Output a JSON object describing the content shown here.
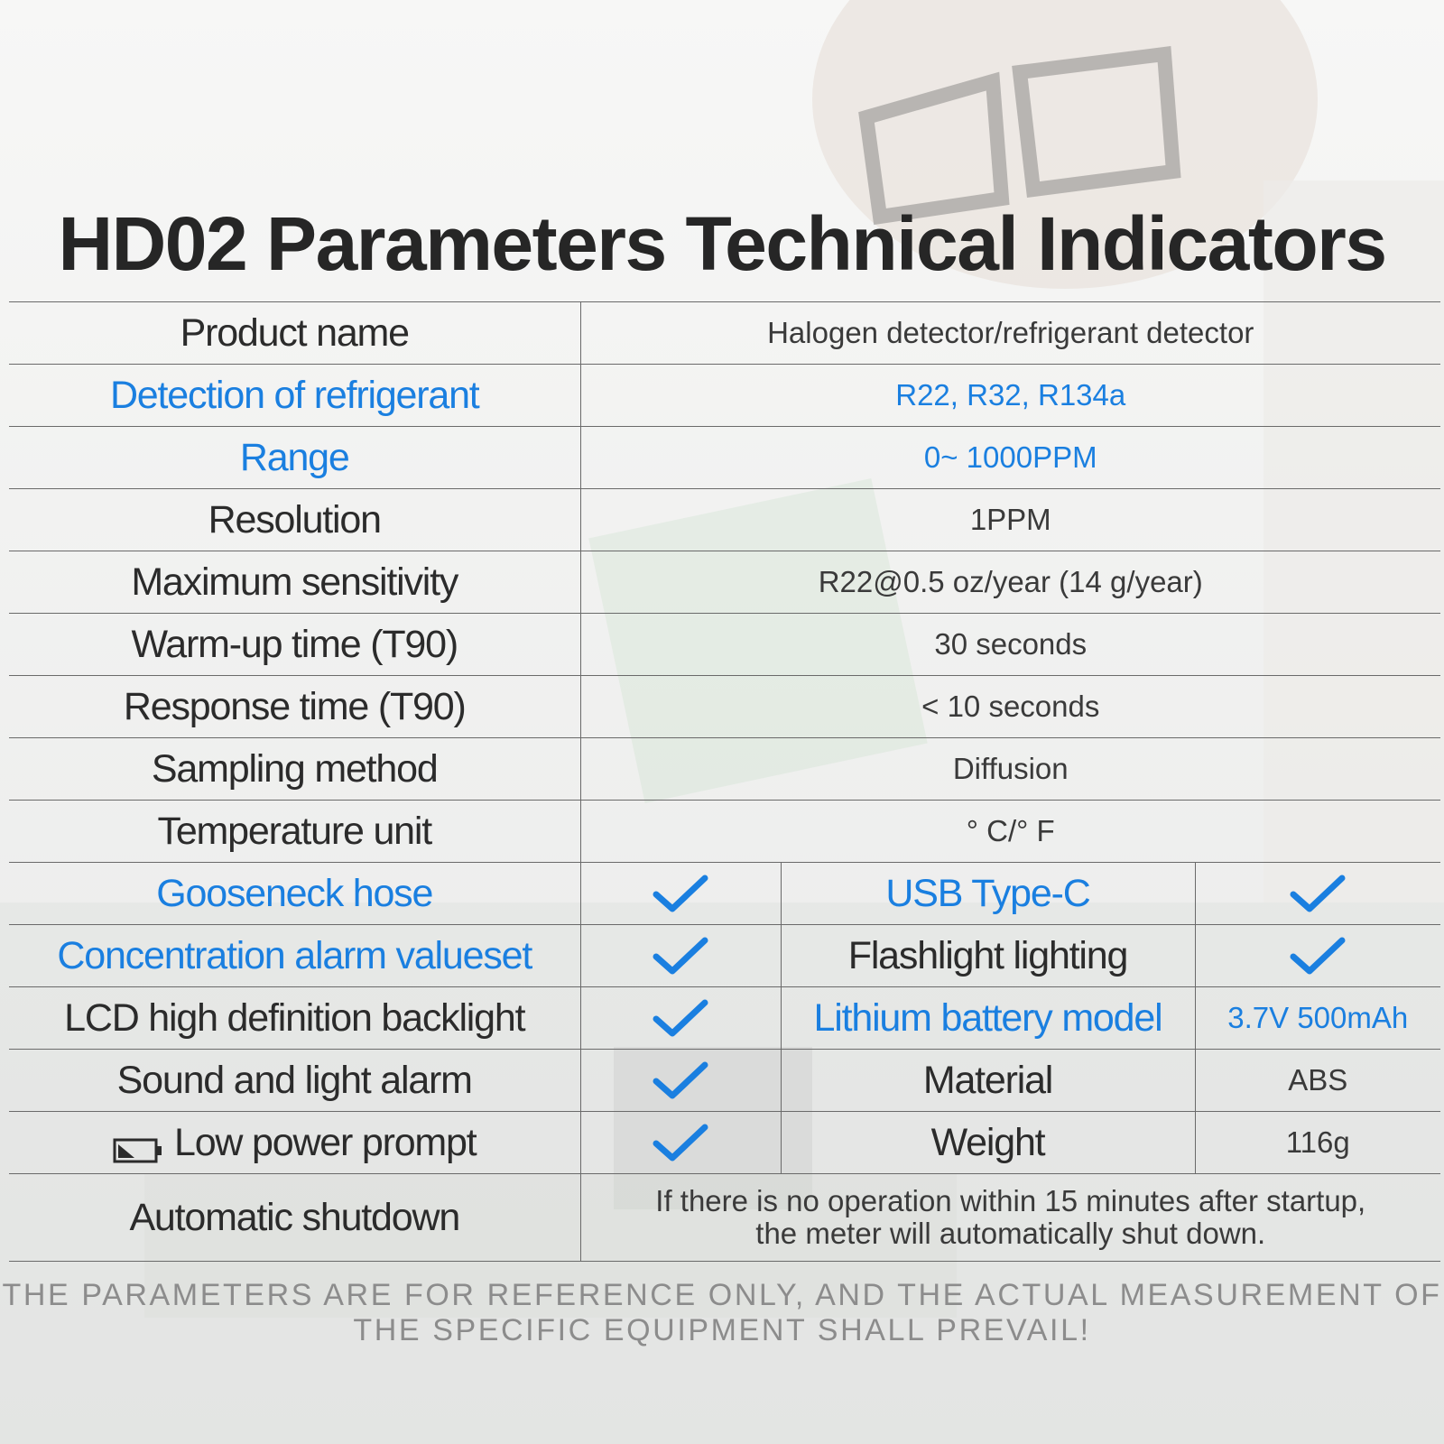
{
  "title": "HD02 Parameters Technical Indicators",
  "colors": {
    "accent": "#1a7fe0",
    "text": "#2b2b2b",
    "rule": "#6a6a6a",
    "note": "#8c8c8c"
  },
  "specs": [
    {
      "label": "Product name",
      "value": "Halogen detector/refrigerant detector",
      "highlight": false
    },
    {
      "label": "Detection of refrigerant",
      "value": "R22, R32, R134a",
      "highlight": true
    },
    {
      "label": "Range",
      "value": "0~ 1000PPM",
      "highlight": true
    },
    {
      "label": "Resolution",
      "value": "1PPM",
      "highlight": false
    },
    {
      "label": "Maximum sensitivity",
      "value": "R22@0.5 oz/year (14 g/year)",
      "highlight": false
    },
    {
      "label": "Warm-up time (T90)",
      "value": "30 seconds",
      "highlight": false
    },
    {
      "label": "Response time (T90)",
      "value": "< 10 seconds",
      "highlight": false
    },
    {
      "label": "Sampling method",
      "value": "Diffusion",
      "highlight": false
    },
    {
      "label": "Temperature unit",
      "value": "° C/° F",
      "highlight": false
    }
  ],
  "features": [
    {
      "left_label": "Gooseneck hose",
      "left_supported": true,
      "right_label": "USB Type-C",
      "right_value": "",
      "right_check": true
    },
    {
      "left_label": "Concentration alarm valueset",
      "left_supported": true,
      "right_label": "Flashlight lighting",
      "right_value": "",
      "right_check": true
    },
    {
      "left_label": "LCD high definition backlight",
      "left_supported": true,
      "right_label": "Lithium battery model",
      "right_value": "3.7V 500mAh",
      "right_check": false
    },
    {
      "left_label": "Sound and light alarm",
      "left_supported": true,
      "right_label": "Material",
      "right_value": "ABS",
      "right_check": false
    },
    {
      "left_label": "Low power prompt",
      "left_supported": true,
      "right_label": "Weight",
      "right_value": "116g",
      "right_check": false
    }
  ],
  "icons": {
    "check": "check-icon",
    "battery": "low-battery-icon"
  },
  "shutdown": {
    "label": "Automatic shutdown",
    "line1": "If there is no operation within 15 minutes after startup,",
    "line2": "the meter will automatically shut down."
  },
  "note": {
    "line1": "THE PARAMETERS ARE FOR REFERENCE ONLY, AND THE ACTUAL MEASUREMENT OF",
    "line2": "THE SPECIFIC EQUIPMENT SHALL PREVAIL!"
  }
}
